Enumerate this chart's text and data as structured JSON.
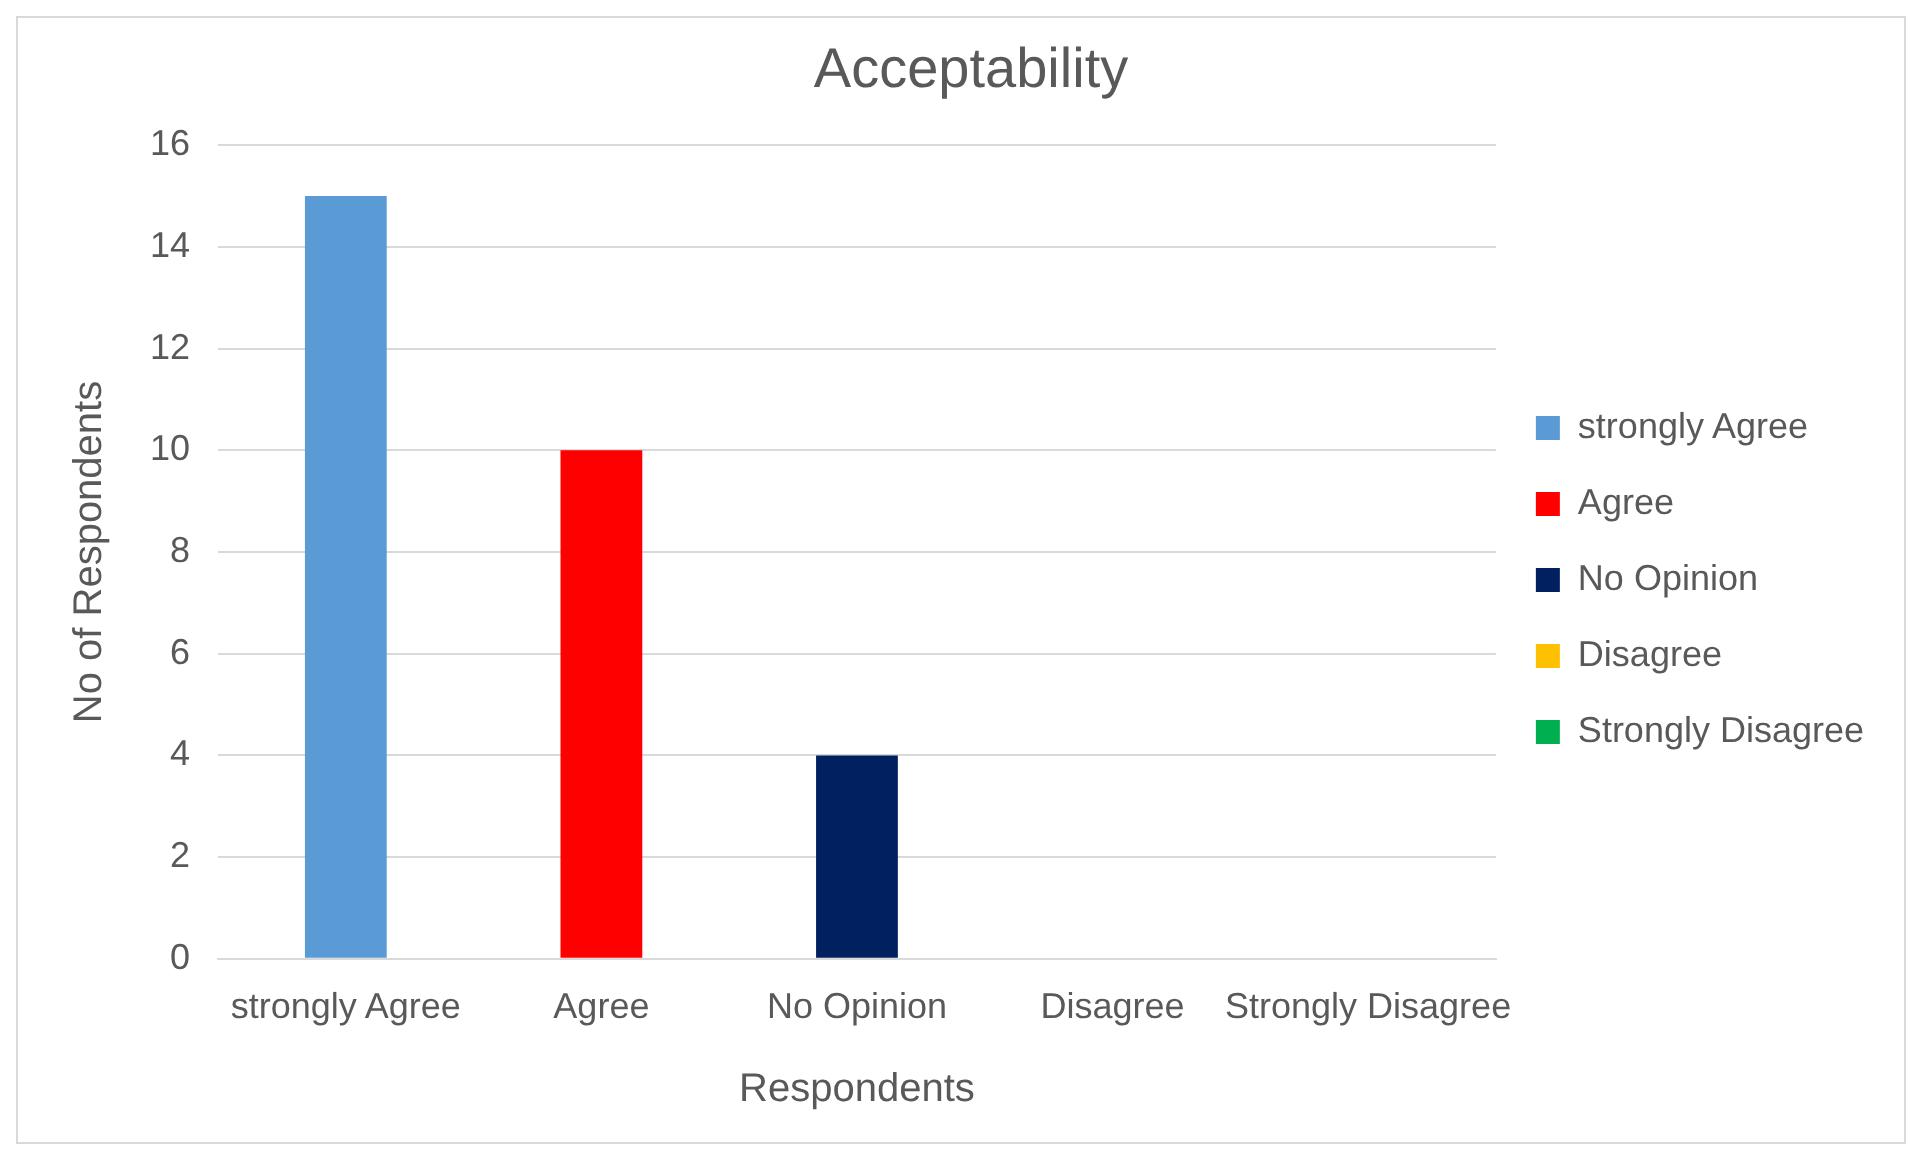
{
  "chart_data": {
    "type": "bar",
    "title": "Acceptability",
    "xlabel": "Respondents",
    "ylabel": "No of Respondents",
    "categories": [
      "strongly Agree",
      "Agree",
      "No Opinion",
      "Disagree",
      "Strongly Disagree"
    ],
    "series": [
      {
        "name": "strongly Agree",
        "color": "#5b9bd5",
        "values": [
          15,
          null,
          null,
          null,
          null
        ]
      },
      {
        "name": "Agree",
        "color": "#ff0000",
        "values": [
          null,
          10,
          null,
          null,
          null
        ]
      },
      {
        "name": "No Opinion",
        "color": "#002060",
        "values": [
          null,
          null,
          4,
          null,
          null
        ]
      },
      {
        "name": "Disagree",
        "color": "#ffc000",
        "values": [
          null,
          null,
          null,
          0,
          null
        ]
      },
      {
        "name": "Strongly Disagree",
        "color": "#00b050",
        "values": [
          null,
          null,
          null,
          null,
          0
        ]
      }
    ],
    "ylim": [
      0,
      16
    ],
    "yticks": [
      0,
      2,
      4,
      6,
      8,
      10,
      12,
      14,
      16
    ],
    "grid": "y",
    "legend": "right"
  }
}
